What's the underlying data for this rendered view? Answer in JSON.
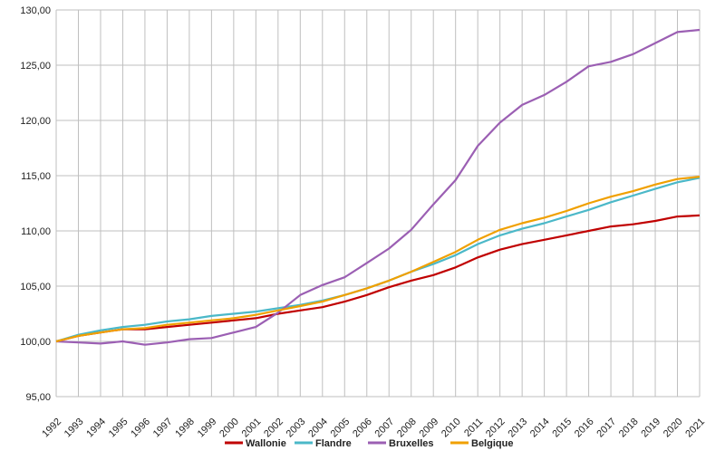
{
  "chart_data": {
    "type": "line",
    "title": "",
    "xlabel": "",
    "ylabel": "",
    "ylim": [
      95,
      130
    ],
    "yticks": [
      "95,00",
      "100,00",
      "105,00",
      "110,00",
      "115,00",
      "120,00",
      "125,00",
      "130,00"
    ],
    "grid": true,
    "legend_position": "bottom",
    "x": [
      "1992",
      "1993",
      "1994",
      "1995",
      "1996",
      "1997",
      "1998",
      "1999",
      "2000",
      "2001",
      "2002",
      "2003",
      "2004",
      "2005",
      "2006",
      "2007",
      "2008",
      "2009",
      "2010",
      "2011",
      "2012",
      "2013",
      "2014",
      "2015",
      "2016",
      "2017",
      "2018",
      "2019",
      "2020",
      "2021"
    ],
    "series": [
      {
        "name": "Wallonie",
        "color": "#c00000",
        "values": [
          100.0,
          100.5,
          100.8,
          101.1,
          101.1,
          101.3,
          101.5,
          101.7,
          101.9,
          102.1,
          102.5,
          102.8,
          103.1,
          103.6,
          104.2,
          104.9,
          105.5,
          106.0,
          106.7,
          107.6,
          108.3,
          108.8,
          109.2,
          109.6,
          110.0,
          110.4,
          110.6,
          110.9,
          111.3,
          111.4
        ]
      },
      {
        "name": "Flandre",
        "color": "#4bb8c8",
        "values": [
          100.0,
          100.6,
          101.0,
          101.3,
          101.5,
          101.8,
          102.0,
          102.3,
          102.5,
          102.7,
          103.0,
          103.3,
          103.7,
          104.2,
          104.8,
          105.5,
          106.3,
          107.0,
          107.8,
          108.8,
          109.6,
          110.2,
          110.7,
          111.3,
          111.9,
          112.6,
          113.2,
          113.8,
          114.4,
          114.8
        ]
      },
      {
        "name": "Bruxelles",
        "color": "#9b5fb3",
        "values": [
          100.0,
          99.9,
          99.8,
          100.0,
          99.7,
          99.9,
          100.2,
          100.3,
          100.8,
          101.3,
          102.6,
          104.2,
          105.1,
          105.8,
          107.1,
          108.4,
          110.1,
          112.4,
          114.6,
          117.7,
          119.8,
          121.4,
          122.3,
          123.5,
          124.9,
          125.3,
          126.0,
          127.0,
          128.0,
          128.2
        ]
      },
      {
        "name": "Belgique",
        "color": "#f0a000",
        "values": [
          100.0,
          100.5,
          100.8,
          101.1,
          101.2,
          101.5,
          101.7,
          101.9,
          102.1,
          102.4,
          102.8,
          103.2,
          103.6,
          104.2,
          104.8,
          105.5,
          106.3,
          107.2,
          108.1,
          109.2,
          110.1,
          110.7,
          111.2,
          111.8,
          112.5,
          113.1,
          113.6,
          114.2,
          114.7,
          114.9
        ]
      }
    ]
  }
}
